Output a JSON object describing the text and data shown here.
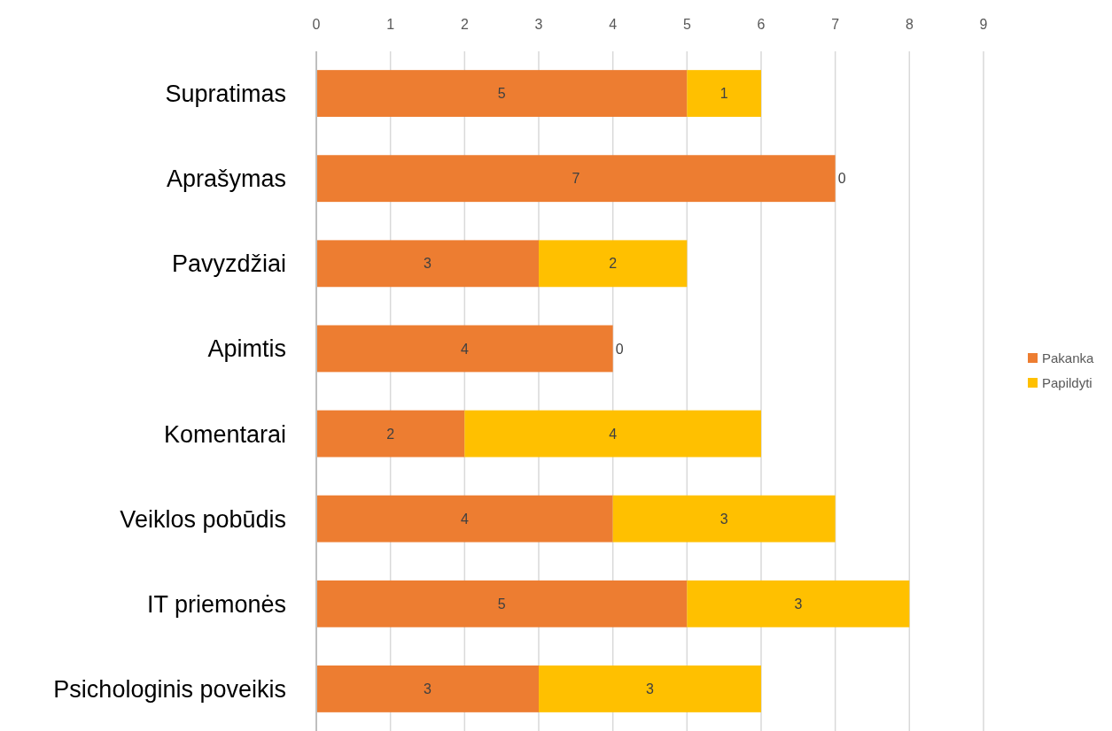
{
  "chart_data": {
    "type": "bar",
    "orientation": "horizontal",
    "stacked": true,
    "categories": [
      "Supratimas",
      "Aprašymas",
      "Pavyzdžiai",
      "Apimtis",
      "Komentarai",
      "Veiklos pobūdis",
      "IT priemonės",
      "Psichologinis poveikis"
    ],
    "series": [
      {
        "name": "Pakanka",
        "color": "#ed7d31",
        "values": [
          5,
          7,
          3,
          4,
          2,
          4,
          5,
          3
        ]
      },
      {
        "name": "Papildyti",
        "color": "#ffc000",
        "values": [
          1,
          0,
          2,
          0,
          4,
          3,
          3,
          3
        ]
      }
    ],
    "xlim": [
      0,
      9
    ],
    "xticks": [
      0,
      1,
      2,
      3,
      4,
      5,
      6,
      7,
      8,
      9
    ],
    "grid": "x",
    "legend": "right",
    "data_labels": true
  }
}
